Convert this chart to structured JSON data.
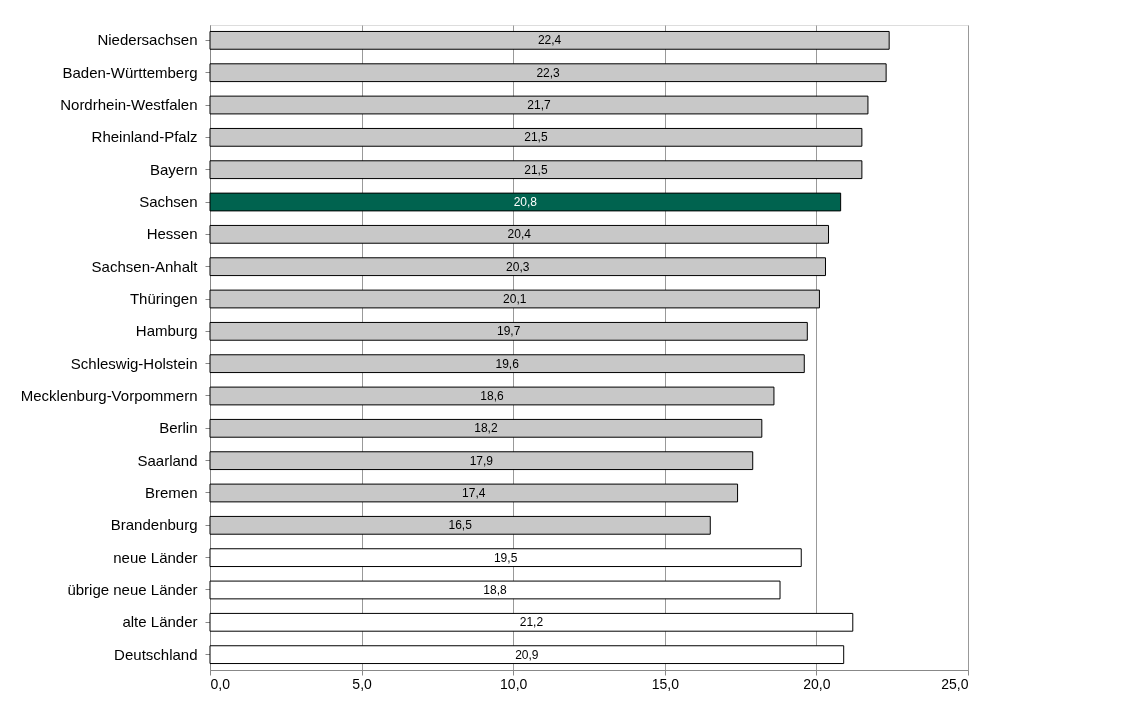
{
  "chart_data": {
    "type": "bar",
    "orientation": "horizontal",
    "categories": [
      "Niedersachsen",
      "Baden-Württemberg",
      "Nordrhein-Westfalen",
      "Rheinland-Pfalz",
      "Bayern",
      "Sachsen",
      "Hessen",
      "Sachsen-Anhalt",
      "Thüringen",
      "Hamburg",
      "Schleswig-Holstein",
      "Mecklenburg-Vorpommern",
      "Berlin",
      "Saarland",
      "Bremen",
      "Brandenburg",
      "neue Länder",
      "übrige neue Länder",
      "alte Länder",
      "Deutschland"
    ],
    "values": [
      22.4,
      22.3,
      21.7,
      21.5,
      21.5,
      20.8,
      20.4,
      20.3,
      20.1,
      19.7,
      19.6,
      18.6,
      18.2,
      17.9,
      17.4,
      16.5,
      19.5,
      18.8,
      21.2,
      20.9
    ],
    "value_labels": [
      "22,4",
      "22,3",
      "21,7",
      "21,5",
      "21,5",
      "20,8",
      "20,4",
      "20,3",
      "20,1",
      "19,7",
      "19,6",
      "18,6",
      "18,2",
      "17,9",
      "17,4",
      "16,5",
      "19,5",
      "18,8",
      "21,2",
      "20,9"
    ],
    "colors": [
      "#c8c8c8",
      "#c8c8c8",
      "#c8c8c8",
      "#c8c8c8",
      "#c8c8c8",
      "#00634f",
      "#c8c8c8",
      "#c8c8c8",
      "#c8c8c8",
      "#c8c8c8",
      "#c8c8c8",
      "#c8c8c8",
      "#c8c8c8",
      "#c8c8c8",
      "#c8c8c8",
      "#c8c8c8",
      "#ffffff",
      "#ffffff",
      "#ffffff",
      "#ffffff"
    ],
    "xlim": [
      0,
      25
    ],
    "xticks": [
      {
        "value": 0,
        "label": "0,0"
      },
      {
        "value": 5,
        "label": "5,0"
      },
      {
        "value": 10,
        "label": "10,0"
      },
      {
        "value": 15,
        "label": "15,0"
      },
      {
        "value": 20,
        "label": "20,0"
      },
      {
        "value": 25,
        "label": "25,0"
      }
    ],
    "grid": "x"
  }
}
